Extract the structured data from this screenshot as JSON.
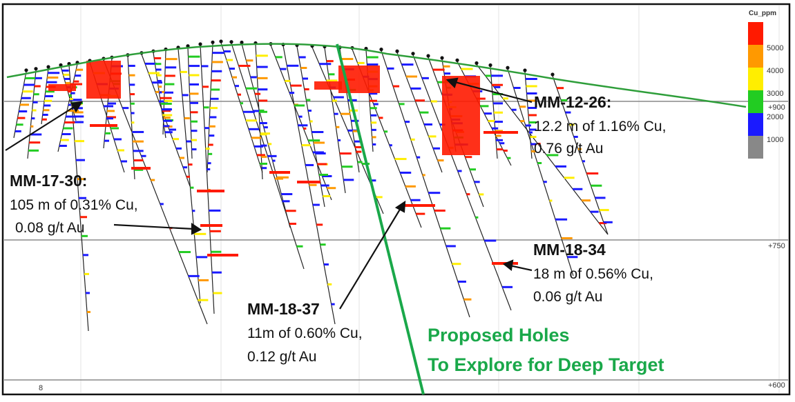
{
  "legend": {
    "title": "Cu_ppm",
    "labels": [
      "5000",
      "4000",
      "3000",
      "2000",
      "1000"
    ],
    "colors": [
      "#ff1a00",
      "#ff9900",
      "#ffee00",
      "#22cc22",
      "#1a1aff",
      "#888888"
    ]
  },
  "elevations": {
    "upper": "+900",
    "middle": "+750",
    "lower": "+600",
    "bottom_left": "8"
  },
  "callouts": {
    "mm1226": {
      "title": "MM-12-26:",
      "line1": "12.2 m of 1.16% Cu,",
      "line2": "0.76 g/t Au"
    },
    "mm1730": {
      "title": "MM-17-30:",
      "line1": "105 m of 0.31% Cu,",
      "line2": "0.08 g/t Au"
    },
    "mm1834": {
      "title": "MM-18-34",
      "line1": "18 m of 0.56% Cu,",
      "line2": "0.06 g/t Au"
    },
    "mm1837": {
      "title": "MM-18-37",
      "line1": "11m of 0.60% Cu,",
      "line2": "0.12 g/t Au"
    }
  },
  "proposed": {
    "line1": "Proposed Holes",
    "line2": "To Explore for  Deep Target"
  },
  "colors": {
    "proposed_green": "#1aa84a",
    "topography": "#2e9e3a",
    "high": "#ff1a00",
    "mid_high": "#ff9900",
    "mid": "#ffee00",
    "low": "#22cc22",
    "very_low": "#1a1aff"
  }
}
